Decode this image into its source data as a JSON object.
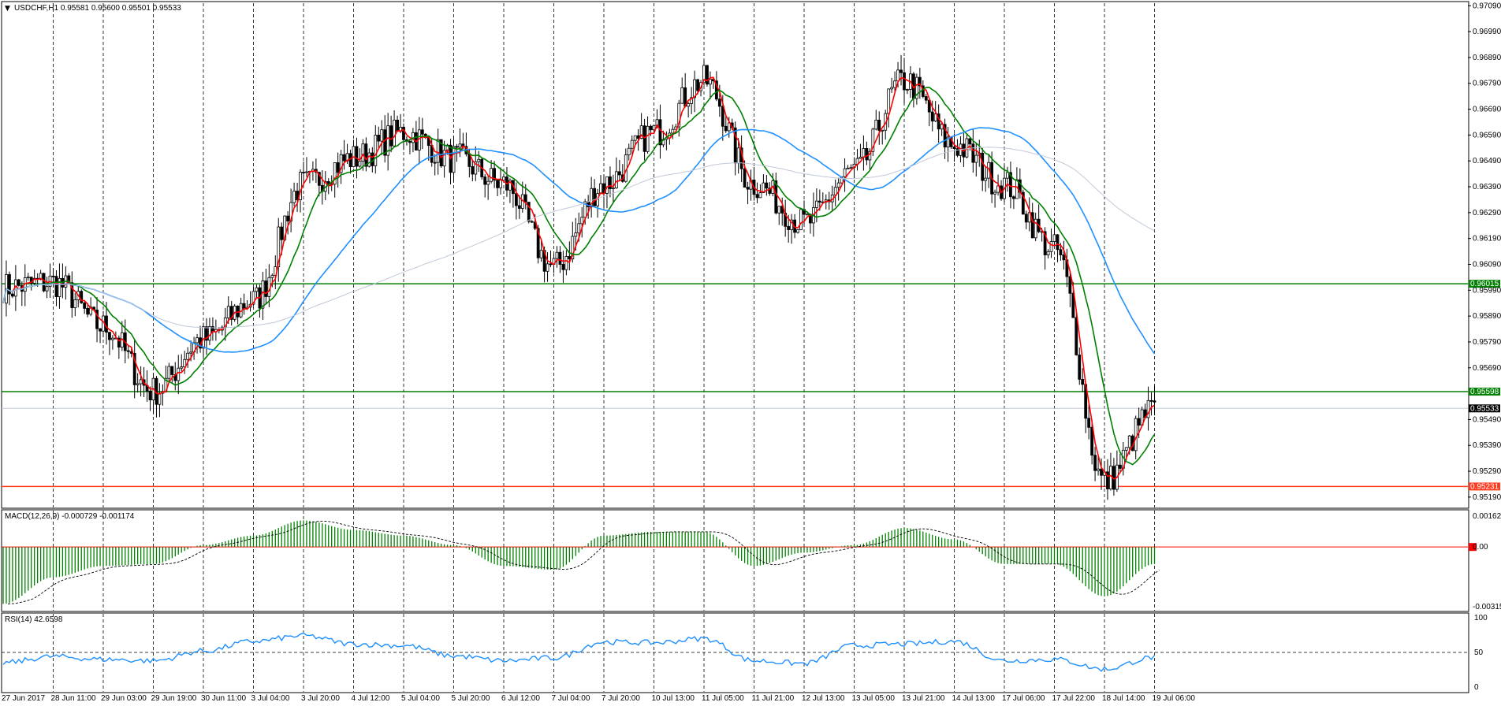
{
  "main": {
    "title_arrow": "▼",
    "title": "USDCHF,H1  0.95581 0.95600 0.95501 0.95533",
    "y_ticks": [
      "0.97090",
      "0.96990",
      "0.96890",
      "0.96790",
      "0.96690",
      "0.96590",
      "0.96490",
      "0.96390",
      "0.96290",
      "0.96190",
      "0.96090",
      "0.95990",
      "0.95890",
      "0.95790",
      "0.95690",
      "0.95490",
      "0.95390",
      "0.95290",
      "0.95190"
    ],
    "levels": [
      {
        "price": 0.96015,
        "label": "0.96015",
        "color": "#008000"
      },
      {
        "price": 0.95598,
        "label": "0.95598",
        "color": "#008000"
      },
      {
        "price": 0.95231,
        "label": "0.95231",
        "color": "#ff3b1f"
      }
    ],
    "current_price": {
      "price": 0.95533,
      "label": "0.95533"
    }
  },
  "macd": {
    "title": "MACD(12,26,9) -0.000729 -0.001174",
    "y_ticks": [
      "0.001627",
      "0.00",
      "-0.00315"
    ]
  },
  "rsi": {
    "title": "RSI(14) 42.6598",
    "y_ticks": [
      "100",
      "50",
      "0"
    ]
  },
  "x_labels": [
    "27 Jun 2017",
    "28 Jun 11:00",
    "29 Jun 03:00",
    "29 Jun 19:00",
    "30 Jun 11:00",
    "3 Jul 04:00",
    "3 Jul 20:00",
    "4 Jul 12:00",
    "5 Jul 04:00",
    "5 Jul 20:00",
    "6 Jul 12:00",
    "7 Jul 04:00",
    "7 Jul 20:00",
    "10 Jul 13:00",
    "11 Jul 05:00",
    "11 Jul 21:00",
    "12 Jul 13:00",
    "13 Jul 05:00",
    "13 Jul 21:00",
    "14 Jul 13:00",
    "17 Jul 06:00",
    "17 Jul 22:00",
    "18 Jul 14:00",
    "19 Jul 06:00"
  ],
  "chart_data": [
    {
      "type": "candlestick",
      "title": "USDCHF,H1",
      "ylim": [
        0.9515,
        0.971
      ],
      "x": [
        "27 Jun 2017",
        "28 Jun 11:00",
        "29 Jun 03:00",
        "29 Jun 19:00",
        "30 Jun 11:00",
        "3 Jul 04:00",
        "3 Jul 20:00",
        "4 Jul 12:00",
        "5 Jul 04:00",
        "5 Jul 20:00",
        "6 Jul 12:00",
        "7 Jul 04:00",
        "7 Jul 20:00",
        "10 Jul 13:00",
        "11 Jul 05:00",
        "11 Jul 21:00",
        "12 Jul 13:00",
        "13 Jul 05:00",
        "13 Jul 21:00",
        "14 Jul 13:00",
        "17 Jul 06:00",
        "17 Jul 22:00",
        "18 Jul 14:00",
        "19 Jul 06:00"
      ],
      "close_trace": [
        0.96,
        0.9602,
        0.9585,
        0.956,
        0.958,
        0.9595,
        0.964,
        0.965,
        0.966,
        0.965,
        0.964,
        0.9608,
        0.964,
        0.966,
        0.968,
        0.964,
        0.9625,
        0.9645,
        0.968,
        0.9655,
        0.964,
        0.9615,
        0.9525,
        0.9553
      ],
      "series": [
        {
          "name": "fast MA",
          "color": "#ff0000"
        },
        {
          "name": "slow MA",
          "color": "#008000"
        },
        {
          "name": "MA",
          "color": "#1e90ff"
        },
        {
          "name": "long MA",
          "color": "#c0c8d8"
        }
      ],
      "grid": true
    },
    {
      "type": "bar",
      "title": "MACD(12,26,9)",
      "ylim": [
        -0.00315,
        0.001627
      ],
      "x": [
        "27 Jun 2017",
        "28 Jun 11:00",
        "29 Jun 03:00",
        "29 Jun 19:00",
        "30 Jun 11:00",
        "3 Jul 04:00",
        "3 Jul 20:00",
        "4 Jul 12:00",
        "5 Jul 04:00",
        "5 Jul 20:00",
        "6 Jul 12:00",
        "7 Jul 04:00",
        "7 Jul 20:00",
        "10 Jul 13:00",
        "11 Jul 05:00",
        "11 Jul 21:00",
        "12 Jul 13:00",
        "13 Jul 05:00",
        "13 Jul 21:00",
        "14 Jul 13:00",
        "17 Jul 06:00",
        "17 Jul 22:00",
        "18 Jul 14:00",
        "19 Jul 06:00"
      ],
      "values": [
        -0.003,
        -0.0016,
        -0.001,
        -0.0009,
        0.0001,
        0.0006,
        0.0014,
        0.0009,
        0.0006,
        0.0001,
        -0.001,
        -0.0012,
        0.0006,
        0.0008,
        0.0008,
        -0.001,
        -0.0003,
        0.0001,
        0.001,
        0.0004,
        -0.0009,
        -0.0009,
        -0.0026,
        -0.0009
      ],
      "colors": {
        "histogram": "#008000",
        "signal": "#000000",
        "zero": "#ff0000"
      }
    },
    {
      "type": "line",
      "title": "RSI(14)",
      "ylim": [
        0,
        100
      ],
      "x": [
        "27 Jun 2017",
        "28 Jun 11:00",
        "29 Jun 03:00",
        "29 Jun 19:00",
        "30 Jun 11:00",
        "3 Jul 04:00",
        "3 Jul 20:00",
        "4 Jul 12:00",
        "5 Jul 04:00",
        "5 Jul 20:00",
        "6 Jul 12:00",
        "7 Jul 04:00",
        "7 Jul 20:00",
        "10 Jul 13:00",
        "11 Jul 05:00",
        "11 Jul 21:00",
        "12 Jul 13:00",
        "13 Jul 05:00",
        "13 Jul 21:00",
        "14 Jul 13:00",
        "17 Jul 06:00",
        "17 Jul 22:00",
        "18 Jul 14:00",
        "19 Jul 06:00"
      ],
      "values": [
        35,
        44,
        40,
        38,
        52,
        66,
        74,
        62,
        60,
        45,
        38,
        42,
        65,
        64,
        70,
        38,
        34,
        60,
        62,
        66,
        38,
        40,
        26,
        43
      ],
      "color": "#1e90ff",
      "reference_line": 50
    }
  ]
}
